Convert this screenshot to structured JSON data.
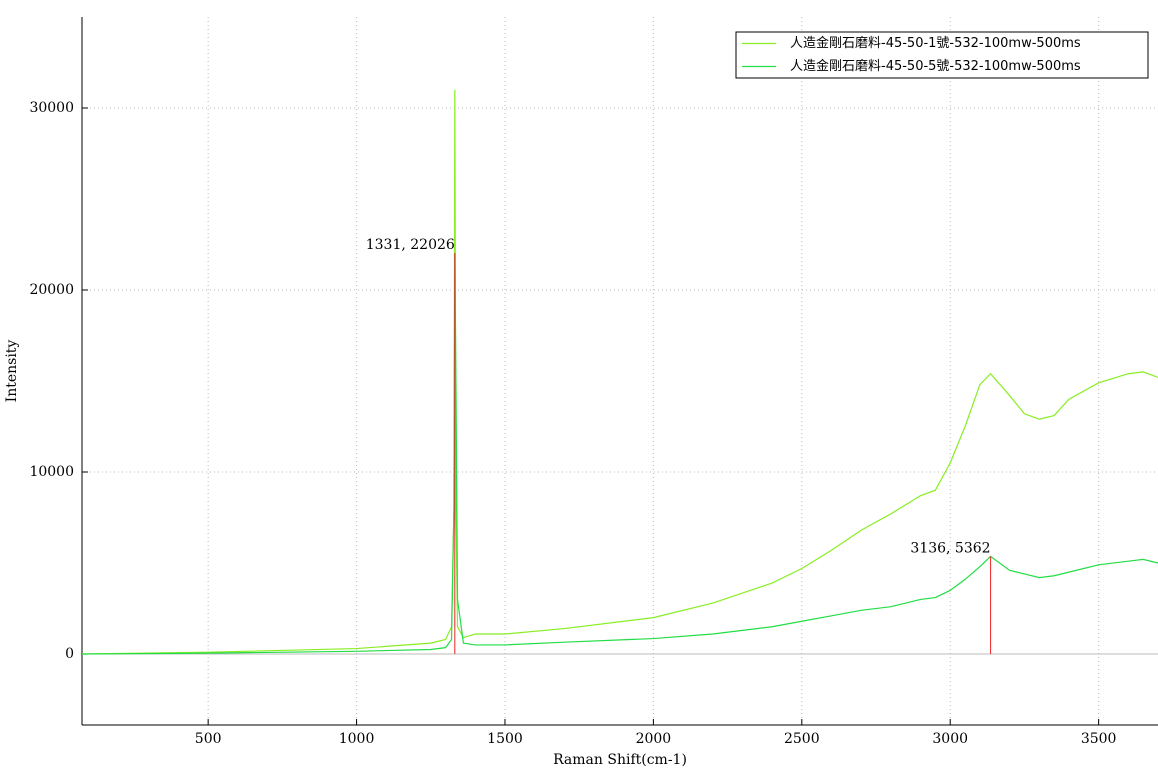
{
  "chart_data": {
    "type": "line",
    "x_label": "Raman Shift(cm-1)",
    "y_label": "Intensity",
    "x": [
      75,
      500,
      1000,
      1250,
      1300,
      1320,
      1328,
      1331,
      1335,
      1340,
      1360,
      1400,
      1500,
      1700,
      2000,
      2200,
      2400,
      2500,
      2600,
      2700,
      2800,
      2900,
      2950,
      3000,
      3050,
      3100,
      3136,
      3200,
      3250,
      3300,
      3350,
      3400,
      3500,
      3600,
      3650,
      3700
    ],
    "series": [
      {
        "name": "人造金剛石磨料-45-50-1號-532-100mw-500ms",
        "color": "#88ee22",
        "values": [
          0,
          100,
          300,
          600,
          800,
          1500,
          8000,
          31000,
          8000,
          1500,
          900,
          1100,
          1100,
          1400,
          2000,
          2800,
          3900,
          4700,
          5700,
          6800,
          7700,
          8700,
          9000,
          10500,
          12500,
          14800,
          15400,
          14200,
          13200,
          12900,
          13100,
          14000,
          14900,
          15400,
          15500,
          15200
        ]
      },
      {
        "name": "人造金剛石磨料-45-50-5號-532-100mw-500ms",
        "color": "#22dd44",
        "values": [
          0,
          50,
          150,
          250,
          350,
          800,
          8000,
          22026,
          14500,
          3000,
          600,
          500,
          500,
          650,
          850,
          1100,
          1500,
          1800,
          2100,
          2400,
          2600,
          3000,
          3100,
          3500,
          4100,
          4800,
          5362,
          4600,
          4400,
          4200,
          4300,
          4500,
          4900,
          5100,
          5200,
          5000
        ]
      }
    ],
    "annotations": [
      {
        "x": 1331,
        "y": 22026,
        "label": "1331, 22026",
        "color": "#ee2222"
      },
      {
        "x": 3136,
        "y": 5362,
        "label": "3136, 5362",
        "color": "#ee2222"
      }
    ],
    "xlim": [
      75,
      3700
    ],
    "ylim": [
      -3900,
      35000
    ],
    "xticks": [
      500,
      1000,
      1500,
      2000,
      2500,
      3000,
      3500
    ],
    "yticks": [
      0,
      10000,
      20000,
      30000
    ],
    "grid": true,
    "legend": "upper right"
  }
}
